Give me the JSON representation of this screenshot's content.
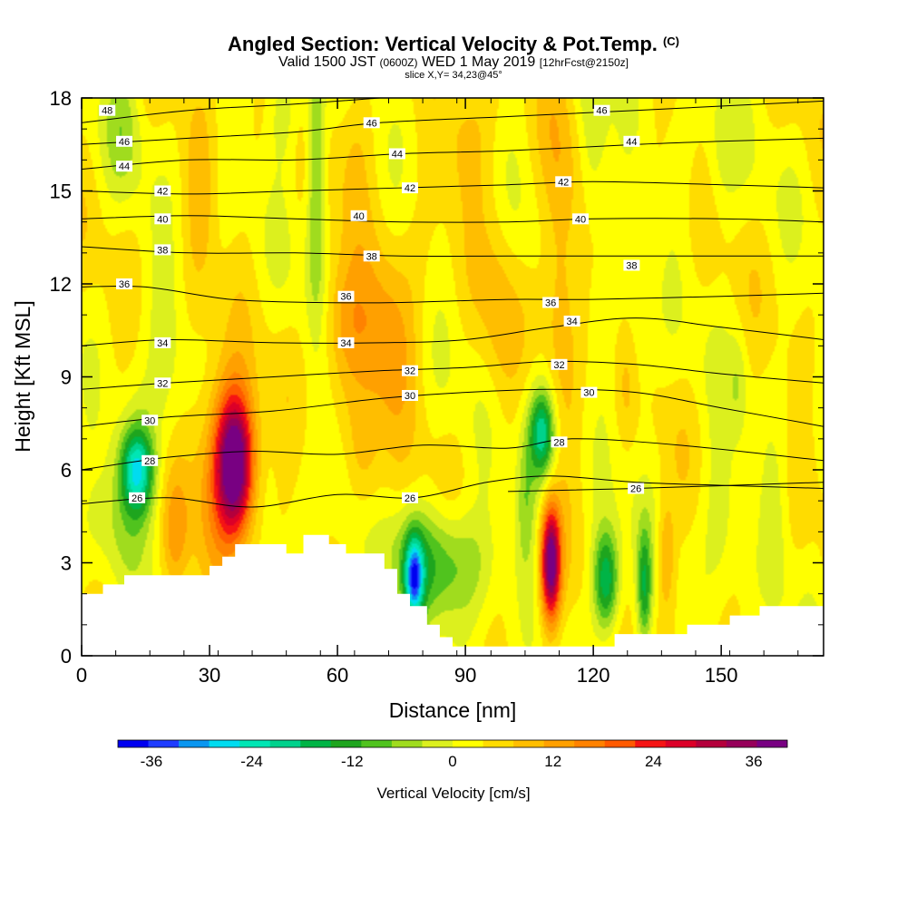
{
  "header": {
    "title": "Angled Section: Vertical Velocity & Pot.Temp.",
    "title_unit": "(C)",
    "line2_a": "Valid 1500 JST",
    "line2_b": "(0600Z)",
    "line2_c": "WED 1 May 2019",
    "line2_d": "[12hrFcst@2150z]",
    "line3": "slice X,Y= 34,23@45°"
  },
  "chart_data": {
    "type": "heatmap",
    "xlabel": "Distance [nm]",
    "ylabel": "Height [Kft MSL]",
    "xlim": [
      0,
      174
    ],
    "ylim": [
      0,
      18
    ],
    "x_ticks": [
      "0",
      "30",
      "60",
      "90",
      "120",
      "150"
    ],
    "x_tick_values": [
      0,
      30,
      60,
      90,
      120,
      150
    ],
    "y_ticks": [
      "0",
      "3",
      "6",
      "9",
      "12",
      "15",
      "18"
    ],
    "y_tick_values": [
      0,
      3,
      6,
      9,
      12,
      15,
      18
    ],
    "colorbar": {
      "title": "Vertical Velocity [cm/s]",
      "labels": [
        "-36",
        "-24",
        "-12",
        "0",
        "12",
        "24",
        "36"
      ],
      "label_values": [
        -36,
        -24,
        -12,
        0,
        12,
        24,
        36
      ],
      "range": [
        -40,
        40
      ],
      "colors": [
        "#0000f0",
        "#1e3cff",
        "#0a96f0",
        "#00dcf0",
        "#00e6b4",
        "#00d28c",
        "#00b446",
        "#1ea51e",
        "#50c31e",
        "#a0dc1e",
        "#dcf01e",
        "#ffff00",
        "#ffdc00",
        "#ffbe00",
        "#ffa000",
        "#ff8200",
        "#ff5a00",
        "#f51414",
        "#dc0028",
        "#b4003c",
        "#96005a",
        "#780082"
      ]
    },
    "terrain_profile": [
      [
        0,
        2
      ],
      [
        5,
        2
      ],
      [
        5,
        2.3
      ],
      [
        10,
        2.3
      ],
      [
        10,
        2.6
      ],
      [
        14,
        2.6
      ],
      [
        14,
        2.6
      ],
      [
        30,
        2.6
      ],
      [
        30,
        2.9
      ],
      [
        33,
        2.9
      ],
      [
        33,
        3.2
      ],
      [
        36,
        3.2
      ],
      [
        36,
        3.6
      ],
      [
        48,
        3.6
      ],
      [
        48,
        3.3
      ],
      [
        52,
        3.3
      ],
      [
        52,
        3.9
      ],
      [
        58,
        3.9
      ],
      [
        58,
        3.6
      ],
      [
        62,
        3.6
      ],
      [
        62,
        3.3
      ],
      [
        71,
        3.3
      ],
      [
        71,
        2.8
      ],
      [
        74,
        2.8
      ],
      [
        74,
        2.0
      ],
      [
        77,
        2.0
      ],
      [
        77,
        1.6
      ],
      [
        81,
        1.6
      ],
      [
        81,
        1.0
      ],
      [
        84,
        1.0
      ],
      [
        84,
        0.6
      ],
      [
        87,
        0.6
      ],
      [
        87,
        0.3
      ],
      [
        90,
        0.3
      ],
      [
        90,
        0.3
      ],
      [
        125,
        0.3
      ],
      [
        125,
        0.7
      ],
      [
        142,
        0.7
      ],
      [
        142,
        1.0
      ],
      [
        152,
        1.0
      ],
      [
        152,
        1.3
      ],
      [
        159,
        1.3
      ],
      [
        159,
        1.6
      ],
      [
        174,
        1.6
      ]
    ],
    "w_features": [
      {
        "x": 36,
        "z": 6.2,
        "sx": 3.2,
        "sz": 1.6,
        "w": 44
      },
      {
        "x": 110,
        "z": 3.0,
        "sx": 1.6,
        "sz": 1.3,
        "w": 38
      },
      {
        "x": 71,
        "z": 10.3,
        "sx": 5.0,
        "sz": 2.0,
        "w": 11
      },
      {
        "x": 61,
        "z": 10.8,
        "sx": 4.0,
        "sz": 1.5,
        "w": 8
      },
      {
        "x": 66,
        "z": 6.2,
        "sx": 3.0,
        "sz": 1.5,
        "w": 8
      },
      {
        "x": 22,
        "z": 3.8,
        "sx": 2.2,
        "sz": 1.4,
        "w": 9
      },
      {
        "x": 30,
        "z": 6.5,
        "sx": 4.0,
        "sz": 2.5,
        "w": 7
      },
      {
        "x": 112,
        "z": 12.0,
        "sx": 3.0,
        "sz": 4.5,
        "w": 9
      },
      {
        "x": 137,
        "z": 3.2,
        "sx": 1.5,
        "sz": 1.3,
        "w": 9
      },
      {
        "x": 128,
        "z": 8.8,
        "sx": 2.0,
        "sz": 1.5,
        "w": 6
      },
      {
        "x": 64,
        "z": 16.8,
        "sx": 3.0,
        "sz": 1.8,
        "w": 6
      },
      {
        "x": 28,
        "z": 14.5,
        "sx": 2.5,
        "sz": 2.0,
        "w": 5
      },
      {
        "x": 90,
        "z": 16.5,
        "sx": 4.0,
        "sz": 1.8,
        "w": 6
      },
      {
        "x": 98,
        "z": 11.0,
        "sx": 3.0,
        "sz": 2.5,
        "w": 5
      },
      {
        "x": 13,
        "z": 6.0,
        "sx": 2.6,
        "sz": 0.9,
        "w": -22
      },
      {
        "x": 13,
        "z": 6.0,
        "sx": 4.5,
        "sz": 1.8,
        "w": -8
      },
      {
        "x": 78,
        "z": 2.5,
        "sx": 1.5,
        "sz": 0.9,
        "w": -28
      },
      {
        "x": 84,
        "z": 3.0,
        "sx": 8.0,
        "sz": 1.3,
        "w": -14
      },
      {
        "x": 123,
        "z": 2.4,
        "sx": 2.2,
        "sz": 1.2,
        "w": -24
      },
      {
        "x": 132,
        "z": 2.2,
        "sx": 1.2,
        "sz": 1.3,
        "w": -16
      },
      {
        "x": 104,
        "z": 4.8,
        "sx": 1.5,
        "sz": 1.5,
        "w": -7
      },
      {
        "x": 108,
        "z": 7.2,
        "sx": 2.0,
        "sz": 0.9,
        "w": -18
      },
      {
        "x": 108,
        "z": 7.2,
        "sx": 3.5,
        "sz": 1.8,
        "w": -8
      },
      {
        "x": 55,
        "z": 15.5,
        "sx": 1.6,
        "sz": 3.0,
        "w": -14
      },
      {
        "x": 20,
        "z": 10.0,
        "sx": 3.0,
        "sz": 2.5,
        "w": -4
      },
      {
        "x": 60,
        "z": 5.5,
        "sx": 4.0,
        "sz": 1.5,
        "w": -4
      },
      {
        "x": 150,
        "z": 4.5,
        "sx": 3.0,
        "sz": 2.0,
        "w": -6
      },
      {
        "x": 163,
        "z": 4.0,
        "sx": 2.0,
        "sz": 2.0,
        "w": -4
      },
      {
        "x": 130,
        "z": 9.5,
        "sx": 2.5,
        "sz": 2.0,
        "w": -6
      },
      {
        "x": 154,
        "z": 8.8,
        "sx": 1.5,
        "sz": 1.2,
        "w": -5
      },
      {
        "x": 120,
        "z": 16.5,
        "sx": 2.5,
        "sz": 2.0,
        "w": -8
      },
      {
        "x": 150,
        "z": 16.5,
        "sx": 2.5,
        "sz": 2.0,
        "w": -5
      },
      {
        "x": 47,
        "z": 17.5,
        "sx": 2.5,
        "sz": 1.2,
        "w": -5
      },
      {
        "x": 10,
        "z": 17.0,
        "sx": 3.0,
        "sz": 1.5,
        "w": -6
      },
      {
        "x": 6,
        "z": 4.0,
        "sx": 4.0,
        "sz": 1.2,
        "w": -4
      }
    ],
    "theta_contours": [
      {
        "label": "26",
        "pts": [
          [
            0,
            4.9
          ],
          [
            20,
            5.1
          ],
          [
            40,
            4.8
          ],
          [
            60,
            5.2
          ],
          [
            78,
            5.1
          ],
          [
            95,
            5.6
          ],
          [
            110,
            5.8
          ],
          [
            130,
            5.6
          ],
          [
            150,
            5.5
          ],
          [
            174,
            5.4
          ]
        ],
        "labels_at": [
          [
            13,
            5.1
          ],
          [
            77,
            5.1
          ]
        ]
      },
      {
        "label": "26",
        "pts": [
          [
            100,
            5.3
          ],
          [
            130,
            5.4
          ],
          [
            174,
            5.6
          ]
        ],
        "labels_at": [
          [
            130,
            5.4
          ]
        ]
      },
      {
        "label": "28",
        "pts": [
          [
            0,
            6.0
          ],
          [
            20,
            6.4
          ],
          [
            40,
            6.6
          ],
          [
            60,
            6.5
          ],
          [
            80,
            6.8
          ],
          [
            100,
            6.7
          ],
          [
            115,
            7.0
          ],
          [
            140,
            6.8
          ],
          [
            174,
            6.3
          ]
        ],
        "labels_at": [
          [
            16,
            6.3
          ],
          [
            112,
            6.9
          ]
        ]
      },
      {
        "label": "30",
        "pts": [
          [
            0,
            7.4
          ],
          [
            20,
            7.7
          ],
          [
            45,
            7.9
          ],
          [
            70,
            8.3
          ],
          [
            90,
            8.5
          ],
          [
            110,
            8.6
          ],
          [
            130,
            8.5
          ],
          [
            150,
            8.0
          ],
          [
            174,
            7.4
          ]
        ],
        "labels_at": [
          [
            16,
            7.6
          ],
          [
            77,
            8.4
          ],
          [
            119,
            8.5
          ]
        ]
      },
      {
        "label": "32",
        "pts": [
          [
            0,
            8.6
          ],
          [
            20,
            8.8
          ],
          [
            45,
            9.0
          ],
          [
            70,
            9.2
          ],
          [
            90,
            9.3
          ],
          [
            110,
            9.5
          ],
          [
            130,
            9.4
          ],
          [
            150,
            9.1
          ],
          [
            174,
            8.8
          ]
        ],
        "labels_at": [
          [
            19,
            8.8
          ],
          [
            77,
            9.2
          ],
          [
            112,
            9.4
          ]
        ]
      },
      {
        "label": "34",
        "pts": [
          [
            0,
            10.0
          ],
          [
            20,
            10.2
          ],
          [
            45,
            10.1
          ],
          [
            70,
            10.1
          ],
          [
            90,
            10.2
          ],
          [
            110,
            10.6
          ],
          [
            130,
            10.9
          ],
          [
            150,
            10.6
          ],
          [
            174,
            10.2
          ]
        ],
        "labels_at": [
          [
            19,
            10.1
          ],
          [
            62,
            10.1
          ],
          [
            115,
            10.8
          ]
        ]
      },
      {
        "label": "36",
        "pts": [
          [
            0,
            11.9
          ],
          [
            15,
            11.9
          ],
          [
            35,
            11.5
          ],
          [
            55,
            11.4
          ],
          [
            75,
            11.4
          ],
          [
            100,
            11.5
          ],
          [
            120,
            11.5
          ],
          [
            150,
            11.6
          ],
          [
            174,
            11.7
          ]
        ],
        "labels_at": [
          [
            10,
            12.0
          ],
          [
            62,
            11.6
          ],
          [
            110,
            11.4
          ]
        ]
      },
      {
        "label": "38",
        "pts": [
          [
            0,
            13.2
          ],
          [
            25,
            13.0
          ],
          [
            50,
            13.0
          ],
          [
            75,
            12.9
          ],
          [
            100,
            12.9
          ],
          [
            130,
            12.9
          ],
          [
            174,
            12.9
          ]
        ],
        "labels_at": [
          [
            19,
            13.1
          ],
          [
            68,
            12.9
          ],
          [
            129,
            12.6
          ]
        ]
      },
      {
        "label": "40",
        "pts": [
          [
            0,
            14.1
          ],
          [
            25,
            14.2
          ],
          [
            50,
            14.1
          ],
          [
            75,
            14.0
          ],
          [
            100,
            14.0
          ],
          [
            120,
            14.1
          ],
          [
            150,
            14.1
          ],
          [
            174,
            14.0
          ]
        ],
        "labels_at": [
          [
            19,
            14.1
          ],
          [
            65,
            14.2
          ],
          [
            117,
            14.1
          ]
        ]
      },
      {
        "label": "42",
        "pts": [
          [
            0,
            15.0
          ],
          [
            25,
            14.9
          ],
          [
            50,
            15.0
          ],
          [
            75,
            15.1
          ],
          [
            100,
            15.2
          ],
          [
            120,
            15.3
          ],
          [
            150,
            15.2
          ],
          [
            174,
            15.1
          ]
        ],
        "labels_at": [
          [
            19,
            15.0
          ],
          [
            77,
            15.1
          ],
          [
            113,
            15.3
          ]
        ]
      },
      {
        "label": "44",
        "pts": [
          [
            0,
            15.7
          ],
          [
            25,
            16.0
          ],
          [
            50,
            16.0
          ],
          [
            75,
            16.2
          ],
          [
            100,
            16.3
          ],
          [
            130,
            16.5
          ],
          [
            150,
            16.6
          ],
          [
            174,
            16.7
          ]
        ],
        "labels_at": [
          [
            10,
            15.8
          ],
          [
            74,
            16.2
          ],
          [
            129,
            16.6
          ]
        ]
      },
      {
        "label": "46",
        "pts": [
          [
            0,
            16.5
          ],
          [
            25,
            16.7
          ],
          [
            50,
            16.9
          ],
          [
            70,
            17.2
          ],
          [
            100,
            17.4
          ],
          [
            130,
            17.6
          ],
          [
            174,
            17.9
          ]
        ],
        "labels_at": [
          [
            10,
            16.6
          ],
          [
            68,
            17.2
          ],
          [
            122,
            17.6
          ]
        ]
      },
      {
        "label": "48",
        "pts": [
          [
            0,
            17.2
          ],
          [
            25,
            17.6
          ],
          [
            50,
            17.8
          ],
          [
            70,
            18.0
          ]
        ],
        "labels_at": [
          [
            6,
            17.6
          ]
        ]
      }
    ]
  }
}
